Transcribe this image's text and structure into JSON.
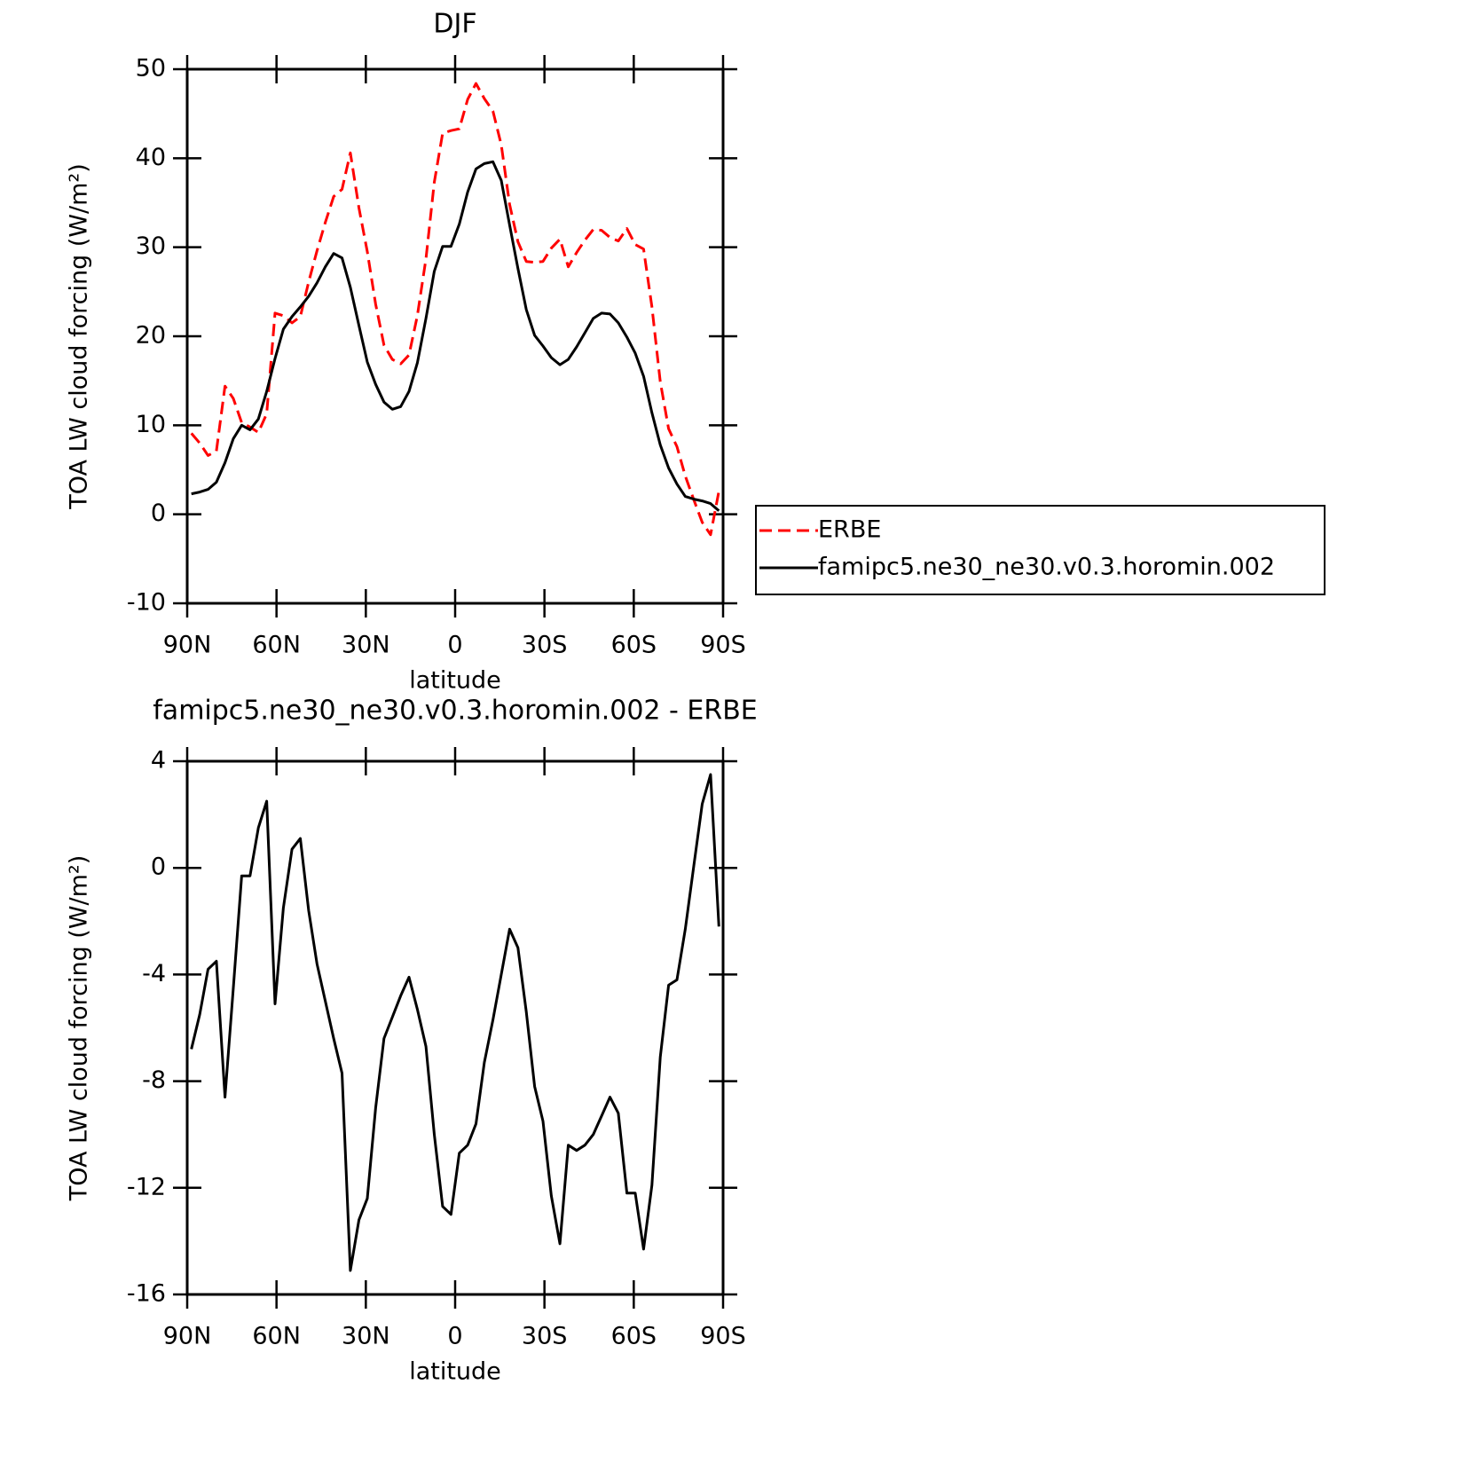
{
  "chart_data": [
    {
      "type": "line",
      "title": "DJF",
      "xlabel": "latitude",
      "ylabel": "TOA LW cloud forcing (W/m²)",
      "x": [
        88.6,
        85.8,
        83.0,
        80.2,
        77.3,
        74.5,
        71.7,
        68.9,
        66.1,
        63.3,
        60.5,
        57.7,
        54.8,
        52.0,
        49.2,
        46.4,
        43.6,
        40.8,
        38.0,
        35.2,
        32.3,
        29.5,
        26.7,
        23.9,
        21.1,
        18.3,
        15.5,
        12.7,
        9.8,
        7.0,
        4.2,
        1.4,
        -1.4,
        -4.2,
        -7.0,
        -9.8,
        -12.7,
        -15.5,
        -18.3,
        -21.1,
        -23.9,
        -26.7,
        -29.5,
        -32.3,
        -35.2,
        -38.0,
        -40.8,
        -43.6,
        -46.4,
        -49.2,
        -52.0,
        -54.8,
        -57.7,
        -60.5,
        -63.3,
        -66.1,
        -68.9,
        -71.7,
        -74.5,
        -77.3,
        -80.2,
        -83.0,
        -85.8,
        -88.6
      ],
      "series": [
        {
          "name": "ERBE",
          "color": "#ff0000",
          "linestyle": "dashed",
          "values": [
            9.1,
            8.0,
            6.6,
            7.1,
            14.4,
            13.0,
            10.3,
            9.8,
            9.2,
            11.3,
            22.6,
            22.3,
            21.5,
            22.2,
            26.1,
            29.6,
            32.8,
            35.7,
            36.5,
            40.6,
            34.4,
            29.5,
            23.6,
            19.0,
            17.4,
            16.9,
            17.9,
            22.3,
            28.7,
            37.3,
            42.8,
            43.1,
            43.3,
            46.6,
            48.4,
            46.7,
            45.3,
            41.5,
            34.8,
            30.6,
            28.4,
            28.3,
            28.4,
            29.9,
            30.9,
            27.8,
            29.4,
            30.8,
            32.0,
            31.9,
            31.1,
            30.7,
            32.1,
            30.3,
            29.8,
            23.3,
            14.9,
            9.6,
            7.6,
            4.3,
            1.6,
            -0.9,
            -2.3,
            2.6
          ]
        },
        {
          "name": "famipc5.ne30_ne30.v0.3.horomin.002",
          "color": "#000000",
          "linestyle": "solid",
          "values": [
            2.3,
            2.5,
            2.8,
            3.6,
            5.8,
            8.5,
            10.0,
            9.5,
            10.7,
            13.8,
            17.5,
            20.8,
            22.2,
            23.3,
            24.5,
            26.0,
            27.8,
            29.3,
            28.8,
            25.5,
            21.2,
            17.1,
            14.6,
            12.6,
            11.8,
            12.1,
            13.8,
            17.0,
            22.0,
            27.3,
            30.1,
            30.1,
            32.6,
            36.2,
            38.8,
            39.4,
            39.6,
            37.5,
            32.5,
            27.6,
            23.0,
            20.1,
            18.9,
            17.6,
            16.8,
            17.4,
            18.8,
            20.4,
            22.0,
            22.6,
            22.5,
            21.5,
            19.9,
            18.1,
            15.5,
            11.4,
            7.8,
            5.2,
            3.4,
            2.0,
            1.7,
            1.5,
            1.2,
            0.4
          ]
        }
      ],
      "xlim": [
        90,
        -90
      ],
      "ylim": [
        -10,
        50
      ],
      "xticks": [
        {
          "value": 90,
          "label": "90N"
        },
        {
          "value": 60,
          "label": "60N"
        },
        {
          "value": 30,
          "label": "30N"
        },
        0,
        {
          "value": -30,
          "label": "30S"
        },
        {
          "value": -60,
          "label": "60S"
        },
        {
          "value": -90,
          "label": "90S"
        }
      ],
      "yticks": [
        -10,
        0,
        10,
        20,
        30,
        40,
        50
      ],
      "legend": "right"
    },
    {
      "type": "line",
      "title": "famipc5.ne30_ne30.v0.3.horomin.002 - ERBE",
      "xlabel": "latitude",
      "ylabel": "TOA LW cloud forcing (W/m²)",
      "x": [
        88.6,
        85.8,
        83.0,
        80.2,
        77.3,
        74.5,
        71.7,
        68.9,
        66.1,
        63.3,
        60.5,
        57.7,
        54.8,
        52.0,
        49.2,
        46.4,
        43.6,
        40.8,
        38.0,
        35.2,
        32.3,
        29.5,
        26.7,
        23.9,
        21.1,
        18.3,
        15.5,
        12.7,
        9.8,
        7.0,
        4.2,
        1.4,
        -1.4,
        -4.2,
        -7.0,
        -9.8,
        -12.7,
        -15.5,
        -18.3,
        -21.1,
        -23.9,
        -26.7,
        -29.5,
        -32.3,
        -35.2,
        -38.0,
        -40.8,
        -43.6,
        -46.4,
        -49.2,
        -52.0,
        -54.8,
        -57.7,
        -60.5,
        -63.3,
        -66.1,
        -68.9,
        -71.7,
        -74.5,
        -77.3,
        -80.2,
        -83.0,
        -85.8,
        -88.6
      ],
      "series": [
        {
          "color": "#000000",
          "linestyle": "solid",
          "values": [
            -6.8,
            -5.5,
            -3.8,
            -3.5,
            -8.6,
            -4.5,
            -0.3,
            -0.3,
            1.5,
            2.5,
            -5.1,
            -1.5,
            0.7,
            1.1,
            -1.6,
            -3.6,
            -5.0,
            -6.4,
            -7.7,
            -15.1,
            -13.2,
            -12.4,
            -9.0,
            -6.4,
            -5.6,
            -4.8,
            -4.1,
            -5.3,
            -6.7,
            -10.0,
            -12.7,
            -13.0,
            -10.7,
            -10.4,
            -9.6,
            -7.3,
            -5.7,
            -4.0,
            -2.3,
            -3.0,
            -5.4,
            -8.2,
            -9.5,
            -12.3,
            -14.1,
            -10.4,
            -10.6,
            -10.4,
            -10.0,
            -9.3,
            -8.6,
            -9.2,
            -12.2,
            -12.2,
            -14.3,
            -11.9,
            -7.1,
            -4.4,
            -4.2,
            -2.3,
            0.1,
            2.4,
            3.5,
            -2.2
          ]
        }
      ],
      "xlim": [
        90,
        -90
      ],
      "ylim": [
        -16,
        4
      ],
      "xticks": [
        {
          "value": 90,
          "label": "90N"
        },
        {
          "value": 60,
          "label": "60N"
        },
        {
          "value": 30,
          "label": "30N"
        },
        0,
        {
          "value": -30,
          "label": "30S"
        },
        {
          "value": -60,
          "label": "60S"
        },
        {
          "value": -90,
          "label": "90S"
        }
      ],
      "yticks": [
        -16,
        -12,
        -8,
        -4,
        0,
        4
      ]
    }
  ]
}
